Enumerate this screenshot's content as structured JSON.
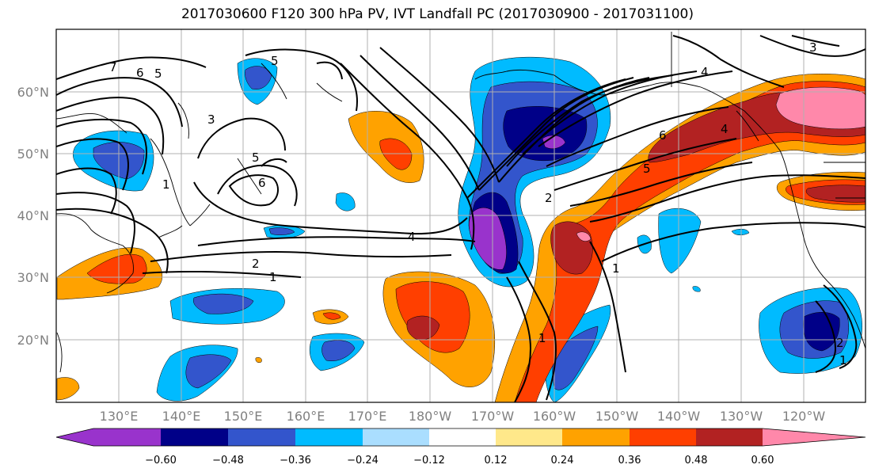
{
  "title": "2017030600 F120 300 hPa PV, IVT Landfall PC (2017030900 - 2017031100)",
  "colors": {
    "neg_060": "#9933cc",
    "neg_048": "#000088",
    "neg_036": "#3355cc",
    "neg_024": "#00bbff",
    "neg_012": "#aadeff",
    "neutral": "#ffffff",
    "pos_012": "#ffe88a",
    "pos_024": "#ffa200",
    "pos_036": "#ff3f00",
    "pos_048": "#b22222",
    "pos_060": "#ff88aa",
    "grid": "#b0b0b0",
    "contour": "#000000",
    "coast": "#000000"
  },
  "map": {
    "lat_labels": [
      "60°N",
      "50°N",
      "40°N",
      "30°N",
      "20°N"
    ],
    "lon_labels": [
      "130°E",
      "140°E",
      "150°E",
      "160°E",
      "170°E",
      "180°W",
      "170°W",
      "160°W",
      "150°W",
      "140°W",
      "130°W",
      "120°W"
    ],
    "contour_labels": [
      "7",
      "6",
      "5",
      "5",
      "3",
      "1",
      "5",
      "6",
      "4",
      "2",
      "1",
      "2",
      "4",
      "6",
      "5",
      "1",
      "1",
      "2",
      "1",
      "3",
      "4"
    ]
  },
  "colorbar": {
    "ticks": [
      "−0.60",
      "−0.48",
      "−0.36",
      "−0.24",
      "−0.12",
      "0.12",
      "0.24",
      "0.36",
      "0.48",
      "0.60"
    ]
  }
}
